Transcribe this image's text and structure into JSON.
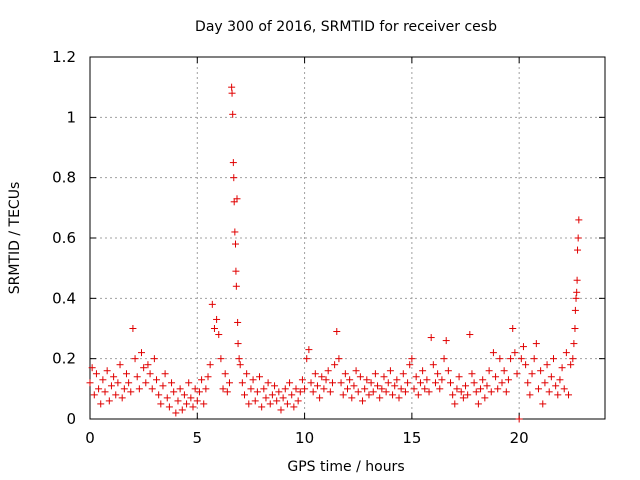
{
  "chart_data": {
    "type": "scatter",
    "title": "Day 300 of 2016, SRMTID for receiver cesb",
    "xlabel": "GPS time / hours",
    "ylabel": "SRMTID / TECUs",
    "xlim": [
      0,
      24
    ],
    "ylim": [
      0,
      1.2
    ],
    "xticks": [
      0,
      5,
      10,
      15,
      20
    ],
    "xtick_labels": [
      "0",
      "5",
      "10",
      "15",
      "20"
    ],
    "yticks": [
      0,
      0.2,
      0.4,
      0.6,
      0.8,
      1.0,
      1.2
    ],
    "ytick_labels": [
      "0",
      "0.2",
      "0.4",
      "0.6",
      "0.8",
      "1",
      "1.2"
    ],
    "grid": true,
    "marker": "plus",
    "color": "#e00000",
    "series": [
      {
        "name": "SRMTID",
        "x": [
          0.0,
          0.1,
          0.2,
          0.3,
          0.4,
          0.5,
          0.6,
          0.7,
          0.8,
          0.9,
          1.0,
          1.1,
          1.2,
          1.3,
          1.4,
          1.5,
          1.6,
          1.7,
          1.8,
          1.9,
          2.0,
          2.1,
          2.2,
          2.3,
          2.4,
          2.5,
          2.6,
          2.7,
          2.8,
          2.9,
          3.0,
          3.1,
          3.2,
          3.3,
          3.4,
          3.5,
          3.6,
          3.7,
          3.8,
          3.9,
          4.0,
          4.1,
          4.2,
          4.3,
          4.4,
          4.5,
          4.6,
          4.7,
          4.8,
          4.9,
          5.0,
          5.1,
          5.2,
          5.3,
          5.4,
          5.5,
          5.6,
          5.7,
          5.8,
          5.9,
          6.0,
          6.1,
          6.2,
          6.3,
          6.4,
          6.5,
          6.6,
          6.62,
          6.65,
          6.68,
          6.7,
          6.72,
          6.75,
          6.78,
          6.8,
          6.82,
          6.85,
          6.88,
          6.9,
          6.95,
          7.0,
          7.1,
          7.2,
          7.3,
          7.4,
          7.5,
          7.6,
          7.7,
          7.8,
          7.9,
          8.0,
          8.1,
          8.2,
          8.3,
          8.4,
          8.5,
          8.6,
          8.7,
          8.8,
          8.9,
          9.0,
          9.1,
          9.2,
          9.3,
          9.4,
          9.5,
          9.6,
          9.7,
          9.8,
          9.9,
          10.0,
          10.1,
          10.2,
          10.3,
          10.4,
          10.5,
          10.6,
          10.7,
          10.8,
          10.9,
          11.0,
          11.1,
          11.2,
          11.3,
          11.4,
          11.5,
          11.6,
          11.7,
          11.8,
          11.9,
          12.0,
          12.1,
          12.2,
          12.3,
          12.4,
          12.5,
          12.6,
          12.7,
          12.8,
          12.9,
          13.0,
          13.1,
          13.2,
          13.3,
          13.4,
          13.5,
          13.6,
          13.7,
          13.8,
          13.9,
          14.0,
          14.1,
          14.2,
          14.3,
          14.4,
          14.5,
          14.6,
          14.7,
          14.8,
          14.9,
          15.0,
          15.1,
          15.2,
          15.3,
          15.4,
          15.5,
          15.6,
          15.7,
          15.8,
          15.9,
          16.0,
          16.1,
          16.2,
          16.3,
          16.4,
          16.5,
          16.6,
          16.7,
          16.8,
          16.9,
          17.0,
          17.1,
          17.2,
          17.3,
          17.4,
          17.5,
          17.6,
          17.7,
          17.8,
          17.9,
          18.0,
          18.1,
          18.2,
          18.3,
          18.4,
          18.5,
          18.6,
          18.7,
          18.8,
          18.9,
          19.0,
          19.1,
          19.2,
          19.3,
          19.4,
          19.5,
          19.6,
          19.7,
          19.8,
          19.9,
          20.0,
          20.1,
          20.2,
          20.3,
          20.4,
          20.5,
          20.6,
          20.7,
          20.8,
          20.9,
          21.0,
          21.1,
          21.2,
          21.3,
          21.4,
          21.5,
          21.6,
          21.7,
          21.8,
          21.9,
          22.0,
          22.1,
          22.2,
          22.3,
          22.4,
          22.5,
          22.55,
          22.6,
          22.62,
          22.65,
          22.68,
          22.7,
          22.72,
          22.75,
          22.78
        ],
        "y": [
          0.12,
          0.17,
          0.08,
          0.15,
          0.1,
          0.05,
          0.13,
          0.09,
          0.16,
          0.06,
          0.11,
          0.14,
          0.08,
          0.12,
          0.18,
          0.07,
          0.1,
          0.15,
          0.12,
          0.09,
          0.3,
          0.2,
          0.14,
          0.1,
          0.22,
          0.17,
          0.12,
          0.18,
          0.15,
          0.1,
          0.2,
          0.13,
          0.08,
          0.05,
          0.11,
          0.15,
          0.07,
          0.04,
          0.12,
          0.09,
          0.02,
          0.06,
          0.1,
          0.03,
          0.08,
          0.05,
          0.12,
          0.07,
          0.04,
          0.1,
          0.06,
          0.09,
          0.13,
          0.05,
          0.1,
          0.14,
          0.18,
          0.38,
          0.3,
          0.33,
          0.28,
          0.2,
          0.1,
          0.15,
          0.09,
          0.12,
          1.1,
          1.08,
          1.01,
          0.85,
          0.8,
          0.72,
          0.62,
          0.58,
          0.49,
          0.44,
          0.73,
          0.32,
          0.25,
          0.2,
          0.18,
          0.12,
          0.08,
          0.15,
          0.05,
          0.1,
          0.13,
          0.06,
          0.09,
          0.14,
          0.04,
          0.1,
          0.07,
          0.12,
          0.05,
          0.08,
          0.11,
          0.06,
          0.09,
          0.03,
          0.07,
          0.1,
          0.05,
          0.12,
          0.08,
          0.04,
          0.1,
          0.06,
          0.09,
          0.13,
          0.1,
          0.2,
          0.23,
          0.12,
          0.09,
          0.15,
          0.11,
          0.07,
          0.14,
          0.1,
          0.13,
          0.16,
          0.09,
          0.12,
          0.18,
          0.29,
          0.2,
          0.12,
          0.08,
          0.15,
          0.1,
          0.13,
          0.07,
          0.11,
          0.16,
          0.09,
          0.14,
          0.06,
          0.1,
          0.13,
          0.08,
          0.12,
          0.09,
          0.15,
          0.11,
          0.07,
          0.1,
          0.14,
          0.09,
          0.12,
          0.16,
          0.08,
          0.11,
          0.13,
          0.07,
          0.1,
          0.15,
          0.09,
          0.12,
          0.18,
          0.2,
          0.1,
          0.14,
          0.08,
          0.12,
          0.16,
          0.1,
          0.13,
          0.09,
          0.27,
          0.18,
          0.12,
          0.15,
          0.1,
          0.13,
          0.2,
          0.26,
          0.16,
          0.12,
          0.08,
          0.05,
          0.1,
          0.14,
          0.09,
          0.07,
          0.11,
          0.08,
          0.28,
          0.15,
          0.12,
          0.09,
          0.05,
          0.1,
          0.13,
          0.07,
          0.11,
          0.16,
          0.09,
          0.22,
          0.14,
          0.1,
          0.2,
          0.12,
          0.16,
          0.09,
          0.13,
          0.2,
          0.3,
          0.22,
          0.15,
          0.0,
          0.2,
          0.24,
          0.18,
          0.12,
          0.08,
          0.15,
          0.2,
          0.25,
          0.1,
          0.16,
          0.05,
          0.12,
          0.18,
          0.09,
          0.14,
          0.2,
          0.11,
          0.08,
          0.13,
          0.17,
          0.1,
          0.22,
          0.08,
          0.18,
          0.2,
          0.25,
          0.3,
          0.36,
          0.4,
          0.42,
          0.46,
          0.56,
          0.6,
          0.66
        ]
      }
    ]
  }
}
